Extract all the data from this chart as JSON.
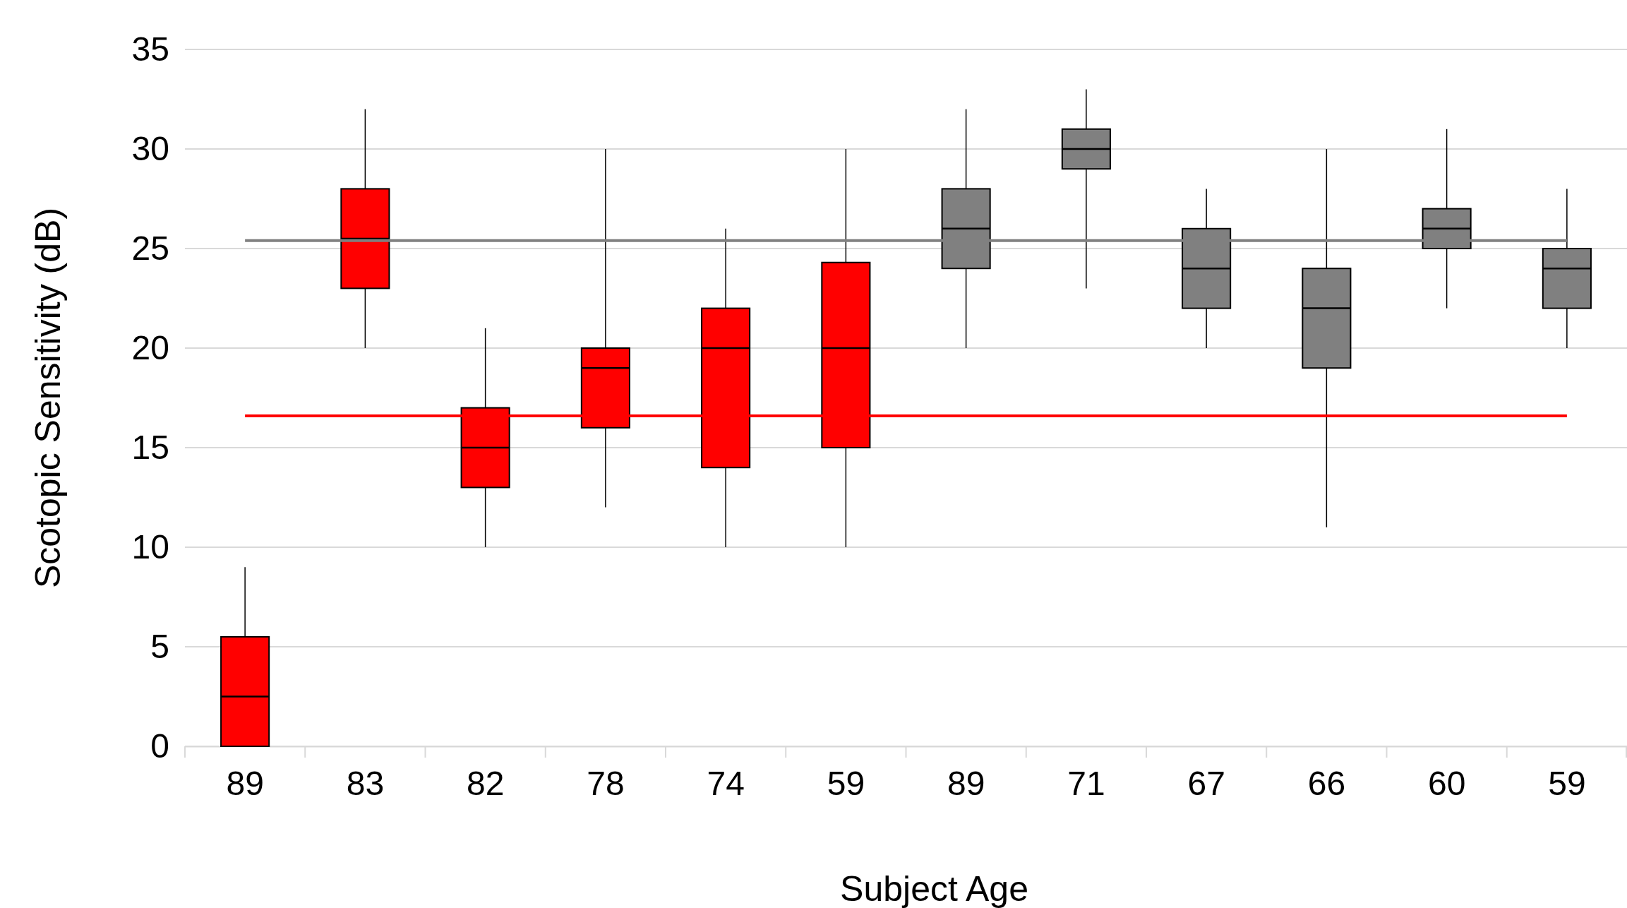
{
  "chart_data": {
    "type": "box",
    "xlabel": "Subject Age",
    "ylabel": "Scotopic Sensitivity (dB)",
    "categories": [
      "89",
      "83",
      "82",
      "78",
      "74",
      "59",
      "89",
      "71",
      "67",
      "66",
      "60",
      "59"
    ],
    "ylim": [
      0,
      35
    ],
    "yticks": [
      0,
      5,
      10,
      15,
      20,
      25,
      30,
      35
    ],
    "grid": "y",
    "series": [
      {
        "color": "#ff0000",
        "boxes": [
          {
            "low": 0,
            "q1": 0,
            "median": 2.5,
            "q3": 5.5,
            "high": 9
          },
          {
            "low": 20,
            "q1": 23,
            "median": 25.5,
            "q3": 28,
            "high": 32
          },
          {
            "low": 10,
            "q1": 13,
            "median": 15,
            "q3": 17,
            "high": 21
          },
          {
            "low": 12,
            "q1": 16,
            "median": 19,
            "q3": 20,
            "high": 30
          },
          {
            "low": 10,
            "q1": 14,
            "median": 20,
            "q3": 22,
            "high": 26
          },
          {
            "low": 10,
            "q1": 15,
            "median": 20,
            "q3": 24.3,
            "high": 30
          },
          null,
          null,
          null,
          null,
          null,
          null
        ]
      },
      {
        "color": "#808080",
        "boxes": [
          null,
          null,
          null,
          null,
          null,
          null,
          {
            "low": 20,
            "q1": 24,
            "median": 26,
            "q3": 28,
            "high": 32
          },
          {
            "low": 23,
            "q1": 29,
            "median": 30,
            "q3": 31,
            "high": 33
          },
          {
            "low": 20,
            "q1": 22,
            "median": 24,
            "q3": 26,
            "high": 28
          },
          {
            "low": 11,
            "q1": 19,
            "median": 22,
            "q3": 24,
            "high": 30
          },
          {
            "low": 22,
            "q1": 25,
            "median": 26,
            "q3": 27,
            "high": 31
          },
          {
            "low": 20,
            "q1": 22,
            "median": 24,
            "q3": 25,
            "high": 28
          }
        ]
      }
    ],
    "ref_lines": [
      {
        "axis": "y",
        "value": 25.4,
        "color": "#808080"
      },
      {
        "axis": "y",
        "value": 16.6,
        "color": "#ff0000"
      }
    ]
  }
}
